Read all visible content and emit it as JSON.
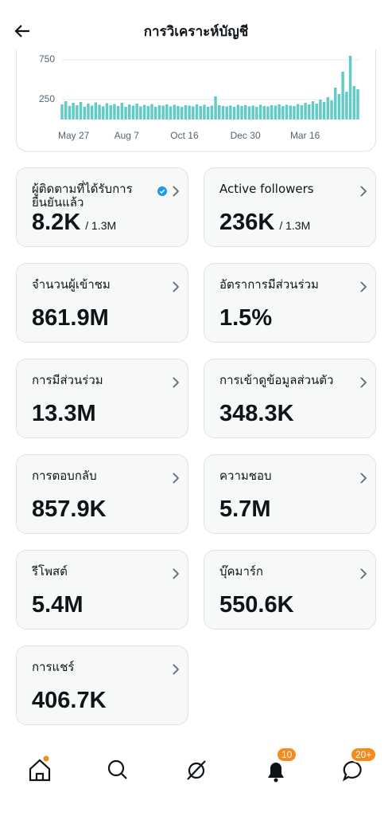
{
  "header": {
    "title": "การวิเคราะห์บัญชี"
  },
  "chart_data": {
    "type": "bar",
    "color": "#62cbc6",
    "grid": true,
    "ylim": [
      0,
      870
    ],
    "yticks": [
      250,
      750
    ],
    "xlim": [
      0,
      79
    ],
    "xticks": [
      {
        "value": 0,
        "label": "May 27"
      },
      {
        "value": 15,
        "label": "Aug 7"
      },
      {
        "value": 30,
        "label": "Oct 16"
      },
      {
        "value": 46,
        "label": "Dec 30"
      },
      {
        "value": 62,
        "label": "Mar 16"
      }
    ],
    "values": [
      190,
      230,
      170,
      210,
      180,
      220,
      160,
      200,
      175,
      215,
      185,
      165,
      205,
      180,
      195,
      170,
      210,
      160,
      190,
      175,
      200,
      165,
      185,
      170,
      195,
      160,
      180,
      175,
      190,
      165,
      185,
      170,
      160,
      180,
      175,
      165,
      190,
      170,
      185,
      160,
      175,
      290,
      180,
      170,
      165,
      175,
      160,
      185,
      170,
      180,
      165,
      175,
      160,
      185,
      170,
      165,
      180,
      175,
      190,
      170,
      185,
      175,
      170,
      195,
      180,
      210,
      190,
      230,
      200,
      250,
      220,
      280,
      240,
      400,
      320,
      600,
      350,
      800,
      420,
      380
    ]
  },
  "cards": [
    {
      "title": "ผู้ติดตามที่ได้รับการยืนยันแล้ว",
      "value": "8.2K",
      "total": "/ 1.3M"
    },
    {
      "title": "Active followers",
      "value": "236K",
      "total": "/ 1.3M"
    },
    {
      "title": "จำนวนผู้เข้าชม",
      "value": "861.9M"
    },
    {
      "title": "อัตราการมีส่วนร่วม",
      "value": "1.5%"
    },
    {
      "title": "การมีส่วนร่วม",
      "value": "13.3M"
    },
    {
      "title": "การเข้าดูข้อมูลส่วนตัว",
      "value": "348.3K"
    },
    {
      "title": "การตอบกลับ",
      "value": "857.9K"
    },
    {
      "title": "ความชอบ",
      "value": "5.7M"
    },
    {
      "title": "รีโพสต์",
      "value": "5.4M"
    },
    {
      "title": "บุ๊คมาร์ก",
      "value": "550.6K"
    },
    {
      "title": "การแชร์",
      "value": "406.7K"
    }
  ],
  "nav": {
    "notifications_badge": "10",
    "messages_badge": "20+"
  }
}
